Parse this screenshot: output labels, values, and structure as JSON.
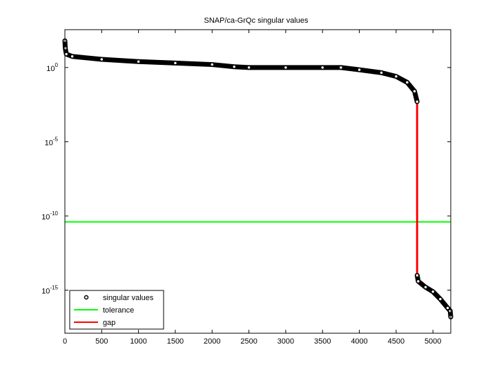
{
  "chart_data": {
    "type": "line",
    "title": "SNAP/ca-GrQc singular values",
    "xlabel": "",
    "ylabel": "",
    "xscale": "linear",
    "yscale": "log",
    "xlim": [
      0,
      5242
    ],
    "ylim_log10": [
      -17.9,
      2.55
    ],
    "xticks": [
      0,
      500,
      1000,
      1500,
      2000,
      2500,
      3000,
      3500,
      4000,
      4500,
      5000
    ],
    "yticks": [
      {
        "base": "10",
        "exp": "0",
        "log10": 0
      },
      {
        "base": "10",
        "exp": "-5",
        "log10": -5
      },
      {
        "base": "10",
        "exp": "-10",
        "log10": -10
      },
      {
        "base": "10",
        "exp": "-15",
        "log10": -15
      }
    ],
    "grid": false,
    "legend": {
      "placement": "bottom-left",
      "entries": [
        "singular values",
        "tolerance",
        "gap"
      ]
    },
    "series": [
      {
        "name": "singular values",
        "marker": "circle",
        "color": "#000000",
        "x": [
          0,
          5,
          20,
          100,
          500,
          1000,
          1500,
          2000,
          2300,
          2500,
          3000,
          3500,
          3750,
          4000,
          4300,
          4500,
          4650,
          4750,
          4785,
          4786,
          4800,
          4900,
          5000,
          5100,
          5200,
          5235,
          5242
        ],
        "log10_y": [
          1.8,
          1.3,
          0.9,
          0.75,
          0.55,
          0.4,
          0.3,
          0.2,
          0.05,
          0.0,
          0.0,
          0.0,
          0.0,
          -0.15,
          -0.35,
          -0.6,
          -1.0,
          -1.6,
          -2.3,
          -14.0,
          -14.4,
          -14.8,
          -15.1,
          -15.6,
          -16.2,
          -16.4,
          -16.8
        ]
      },
      {
        "name": "tolerance",
        "color": "#00ff00",
        "log10_y": -10.4
      },
      {
        "name": "gap",
        "color": "#ff0000",
        "x": 4785,
        "log10_y": [
          -2.3,
          -14.0
        ]
      }
    ]
  }
}
